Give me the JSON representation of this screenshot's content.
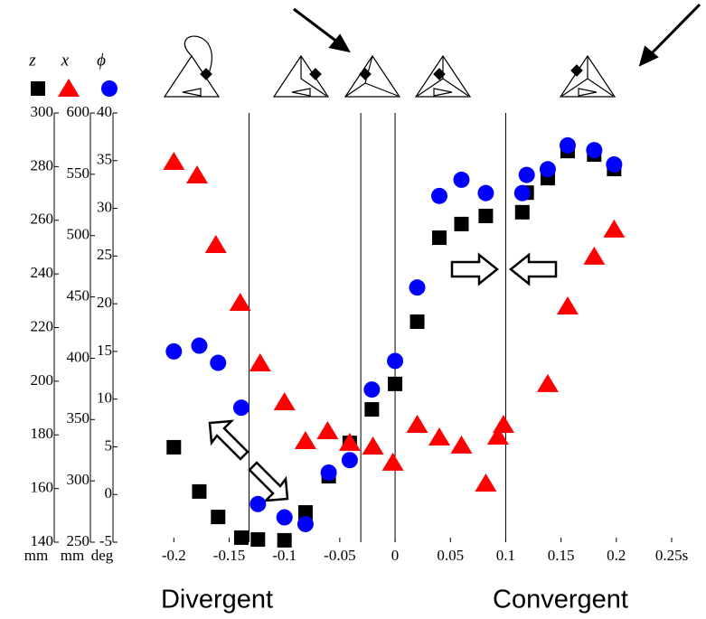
{
  "chart_data": {
    "type": "scatter",
    "xlim": [
      -0.255,
      0.25
    ],
    "xticks": [
      -0.2,
      -0.15,
      -0.1,
      -0.05,
      0,
      0.05,
      0.1,
      0.15,
      0.2,
      {
        "value": 0.25,
        "label": "0.25s"
      }
    ],
    "ylim": [
      -5,
      40
    ],
    "yticks": [
      -5,
      0,
      5,
      10,
      15,
      20,
      25,
      30,
      35,
      40
    ],
    "yunit": "deg",
    "y2lim": [
      250,
      600
    ],
    "y2ticks": [
      250,
      300,
      350,
      400,
      450,
      500,
      550,
      600
    ],
    "y2unit": "mm",
    "y3lim": [
      140,
      300
    ],
    "y3ticks": [
      140,
      160,
      180,
      200,
      220,
      240,
      260,
      280,
      300
    ],
    "y3unit": "mm",
    "vlines": [
      -0.132,
      -0.031,
      0,
      0.1
    ],
    "annotations": [
      "Divergent",
      "Convergent"
    ],
    "series": [
      {
        "name": "z",
        "color": "#000000",
        "marker": "square",
        "axis": "y3",
        "x": [
          -0.2,
          -0.177,
          -0.16,
          -0.139,
          -0.124,
          -0.1,
          -0.081,
          -0.06,
          -0.041,
          -0.021,
          0,
          0.02,
          0.04,
          0.06,
          0.082,
          0.115,
          0.119,
          0.138,
          0.156,
          0.18,
          0.198
        ],
        "values": [
          175.4,
          158.9,
          149.4,
          141.7,
          141,
          140.7,
          151.1,
          164.6,
          177,
          189.5,
          199,
          222.2,
          253.5,
          258.6,
          261.6,
          263,
          270.3,
          275.7,
          285.8,
          284.5,
          279.1
        ]
      },
      {
        "name": "x",
        "color": "#ff0000",
        "marker": "triangle",
        "axis": "y2",
        "x": [
          -0.2,
          -0.179,
          -0.162,
          -0.14,
          -0.122,
          -0.1,
          -0.081,
          -0.061,
          -0.041,
          -0.02,
          -0.002,
          0.02,
          0.04,
          0.06,
          0.082,
          0.093,
          0.098,
          0.138,
          0.156,
          0.18,
          0.198
        ],
        "values": [
          560.2,
          549.2,
          492.4,
          445.3,
          395.9,
          364.2,
          332.5,
          340.6,
          331.1,
          328.1,
          314.9,
          345.8,
          335.5,
          328.9,
          297.9,
          336.2,
          345.8,
          379,
          442.3,
          482.9,
          505
        ]
      },
      {
        "name": "ϕ",
        "color": "#0000ff",
        "marker": "circle",
        "axis": "y",
        "x": [
          -0.2,
          -0.177,
          -0.16,
          -0.139,
          -0.124,
          -0.1,
          -0.081,
          -0.06,
          -0.041,
          -0.021,
          0,
          0.02,
          0.04,
          0.06,
          0.082,
          0.115,
          0.119,
          0.138,
          0.156,
          0.18,
          0.198
        ],
        "values": [
          15,
          15.6,
          13.8,
          9.1,
          -1,
          -2.4,
          -3.1,
          2.3,
          3.6,
          11,
          14,
          21.7,
          31.3,
          33,
          31.6,
          31.6,
          33.5,
          34.1,
          36.6,
          36.1,
          34.6
        ]
      }
    ]
  }
}
